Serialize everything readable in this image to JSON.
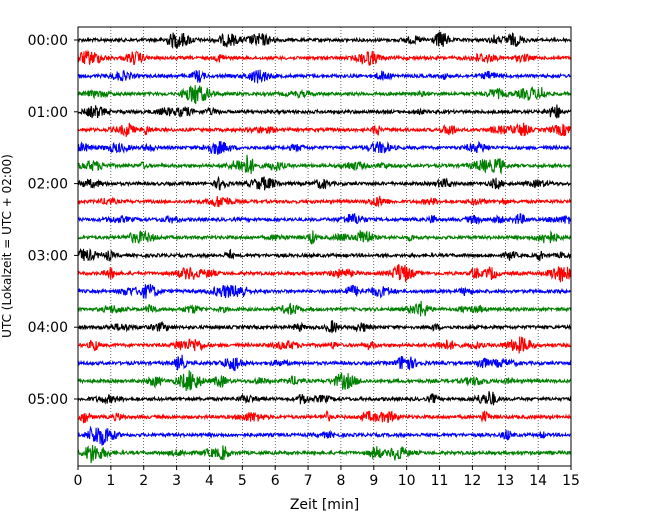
{
  "chart_data": {
    "type": "line",
    "title": "",
    "xlabel": "Zeit  [min]",
    "ylabel": "UTC (Lokalzeit = UTC + 02:00)",
    "xlim": [
      0,
      15
    ],
    "x_ticks": [
      "0",
      "1",
      "2",
      "3",
      "4",
      "5",
      "6",
      "7",
      "8",
      "9",
      "10",
      "11",
      "12",
      "13",
      "14",
      "15"
    ],
    "y_tick_labels": [
      "00:00",
      "01:00",
      "02:00",
      "03:00",
      "04:00",
      "05:00"
    ],
    "grid": "vertical dotted",
    "trace_interval_minutes": 15,
    "trace_colors": [
      "#000000",
      "#ff0000",
      "#0000ff",
      "#008000"
    ],
    "traces": [
      {
        "start": "00:00",
        "color": "#000000"
      },
      {
        "start": "00:15",
        "color": "#ff0000"
      },
      {
        "start": "00:30",
        "color": "#0000ff"
      },
      {
        "start": "00:45",
        "color": "#008000"
      },
      {
        "start": "01:00",
        "color": "#000000"
      },
      {
        "start": "01:15",
        "color": "#ff0000"
      },
      {
        "start": "01:30",
        "color": "#0000ff"
      },
      {
        "start": "01:45",
        "color": "#008000"
      },
      {
        "start": "02:00",
        "color": "#000000"
      },
      {
        "start": "02:15",
        "color": "#ff0000"
      },
      {
        "start": "02:30",
        "color": "#0000ff"
      },
      {
        "start": "02:45",
        "color": "#008000"
      },
      {
        "start": "03:00",
        "color": "#000000"
      },
      {
        "start": "03:15",
        "color": "#ff0000"
      },
      {
        "start": "03:30",
        "color": "#0000ff"
      },
      {
        "start": "03:45",
        "color": "#008000"
      },
      {
        "start": "04:00",
        "color": "#000000"
      },
      {
        "start": "04:15",
        "color": "#ff0000"
      },
      {
        "start": "04:30",
        "color": "#0000ff"
      },
      {
        "start": "04:45",
        "color": "#008000"
      },
      {
        "start": "05:00",
        "color": "#000000"
      },
      {
        "start": "05:15",
        "color": "#ff0000"
      },
      {
        "start": "05:30",
        "color": "#0000ff"
      },
      {
        "start": "05:45",
        "color": "#008000"
      }
    ]
  }
}
